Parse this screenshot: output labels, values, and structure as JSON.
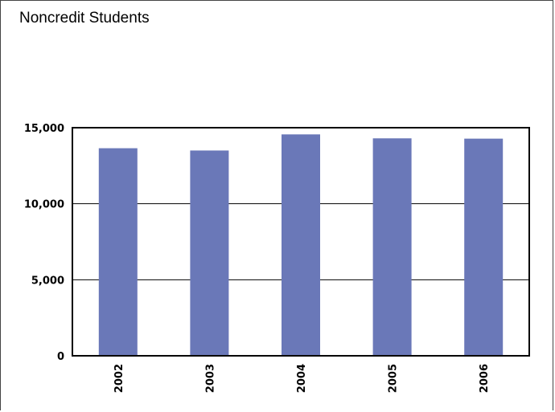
{
  "chart_data": {
    "type": "bar",
    "title": "Noncredit Students",
    "categories": [
      "2002",
      "2003",
      "2004",
      "2005",
      "2006"
    ],
    "values": [
      13650,
      13500,
      14560,
      14300,
      14280
    ],
    "ylim": [
      0,
      15000
    ],
    "yticks": [
      0,
      5000,
      10000,
      15000
    ],
    "ytick_labels": [
      "0",
      "5,000",
      "10,000",
      "15,000"
    ],
    "xlabel": "",
    "ylabel": "",
    "grid": true,
    "bar_color": "#6a78b8"
  }
}
